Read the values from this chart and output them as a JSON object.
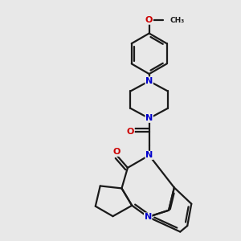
{
  "background_color": "#e8e8e8",
  "bond_color": "#1a1a1a",
  "N_color": "#0000cc",
  "O_color": "#cc0000",
  "line_width": 1.6,
  "figsize": [
    3.0,
    3.0
  ],
  "dpi": 100,
  "xlim": [
    0,
    10
  ],
  "ylim": [
    0,
    10
  ]
}
